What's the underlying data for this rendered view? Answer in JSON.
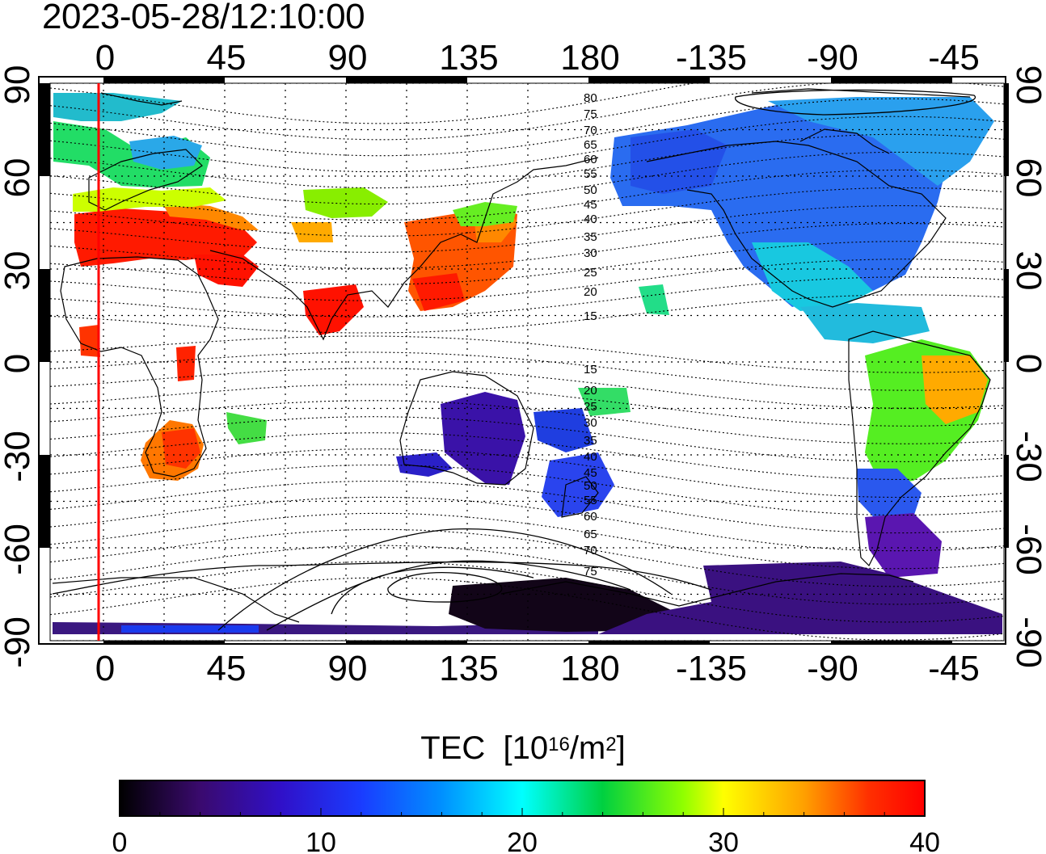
{
  "title": "2023-05-28/12:10:00",
  "map": {
    "top_lon_labels": [
      "0",
      "45",
      "90",
      "135",
      "180",
      "-135",
      "-90",
      "-45"
    ],
    "bottom_lon_labels": [
      "0",
      "45",
      "90",
      "135",
      "180",
      "-135",
      "-90",
      "-45"
    ],
    "left_lat_labels": [
      "90",
      "60",
      "30",
      "0",
      "-30",
      "-60",
      "-90"
    ],
    "right_lat_labels": [
      "90",
      "60",
      "30",
      "0",
      "-30",
      "-60",
      "-90"
    ],
    "contour_labels": [
      "80",
      "75",
      "70",
      "65",
      "60",
      "55",
      "50",
      "45",
      "40",
      "35",
      "30",
      "25",
      "20",
      "15",
      "15",
      "20",
      "25",
      "30",
      "35",
      "40",
      "45",
      "50",
      "55",
      "60",
      "65",
      "70",
      "75"
    ],
    "terminator_color": "#ff0000",
    "grid": "dotted"
  },
  "colorbar": {
    "title": "TEC",
    "unit_base": "[10",
    "unit_exp": "16",
    "unit_mid": "/m",
    "unit_exp2": "2",
    "unit_close": "]",
    "ticks": [
      "0",
      "10",
      "20",
      "30",
      "40"
    ],
    "range": [
      0,
      40
    ],
    "colors": [
      "#000000",
      "#3a0a6e",
      "#2222ee",
      "#0066ff",
      "#00ffff",
      "#00cc44",
      "#88ff00",
      "#ffff00",
      "#ffaa00",
      "#ff4400",
      "#ff0000"
    ]
  },
  "patches": [
    {
      "region": "Europe",
      "tec": 39
    },
    {
      "region": "North Atlantic / Scandinavia",
      "tec": 22
    },
    {
      "region": "East Asia",
      "tec": 36
    },
    {
      "region": "India",
      "tec": 39
    },
    {
      "region": "Africa South",
      "tec": 35
    },
    {
      "region": "North America",
      "tec": 13
    },
    {
      "region": "South America",
      "tec": 28
    },
    {
      "region": "Australia",
      "tec": 7
    },
    {
      "region": "New Zealand",
      "tec": 10
    },
    {
      "region": "Antarctica",
      "tec": 2
    }
  ]
}
